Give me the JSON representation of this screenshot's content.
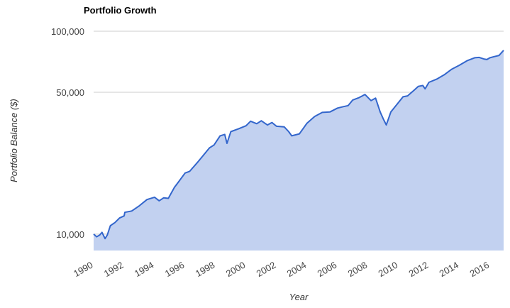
{
  "chart_data": {
    "type": "area",
    "title": "Portfolio Growth",
    "xlabel": "Year",
    "ylabel": "Portfolio Balance ($)",
    "yscale": "log",
    "ylim": [
      8300,
      100000
    ],
    "xlim": [
      1990.0,
      2016.9
    ],
    "y_ticks": [
      {
        "value": 100000,
        "label": "100,000"
      },
      {
        "value": 50000,
        "label": "50,000"
      },
      {
        "value": 10000,
        "label": "10,000"
      }
    ],
    "x_ticks": [
      {
        "value": 1990,
        "label": "1990"
      },
      {
        "value": 1992,
        "label": "1992"
      },
      {
        "value": 1994,
        "label": "1994"
      },
      {
        "value": 1996,
        "label": "1996"
      },
      {
        "value": 1998,
        "label": "1998"
      },
      {
        "value": 2000,
        "label": "2000"
      },
      {
        "value": 2002,
        "label": "2002"
      },
      {
        "value": 2004,
        "label": "2004"
      },
      {
        "value": 2006,
        "label": "2006"
      },
      {
        "value": 2008,
        "label": "2008"
      },
      {
        "value": 2010,
        "label": "2010"
      },
      {
        "value": 2012,
        "label": "2012"
      },
      {
        "value": 2014,
        "label": "2014"
      },
      {
        "value": 2016,
        "label": "2016"
      }
    ],
    "grid": true,
    "legend": "none",
    "colors": {
      "line": "#3366cc",
      "fill": "#c2d1f0"
    },
    "series": [
      {
        "x": [
          1990.0,
          1990.2,
          1990.4,
          1990.55,
          1990.75,
          1990.9,
          1991.1,
          1991.4,
          1991.7,
          1992.0,
          1992.05,
          1992.5,
          1993.0,
          1993.5,
          1994.0,
          1994.3,
          1994.6,
          1994.9,
          1995.3,
          1995.6,
          1996.0,
          1996.3,
          1996.8,
          1997.3,
          1997.6,
          1997.9,
          1998.3,
          1998.6,
          1998.75,
          1999.0,
          1999.5,
          2000.0,
          2000.3,
          2000.7,
          2001.0,
          2001.4,
          2001.7,
          2002.0,
          2002.5,
          2002.8,
          2003.0,
          2003.5,
          2004.0,
          2004.5,
          2005.0,
          2005.5,
          2006.0,
          2006.4,
          2006.7,
          2007.0,
          2007.4,
          2007.8,
          2008.2,
          2008.5,
          2008.8,
          2009.0,
          2009.2,
          2009.5,
          2010.0,
          2010.3,
          2010.6,
          2011.0,
          2011.3,
          2011.6,
          2011.75,
          2012.0,
          2012.5,
          2013.0,
          2013.5,
          2014.0,
          2014.5,
          2015.0,
          2015.3,
          2015.6,
          2015.8,
          2016.0,
          2016.3,
          2016.6,
          2016.9
        ],
        "y": [
          10000,
          9700,
          9900,
          10200,
          9500,
          9900,
          11000,
          11400,
          12000,
          12300,
          12800,
          13000,
          13800,
          14800,
          15200,
          14600,
          15100,
          15000,
          17000,
          18200,
          20000,
          20400,
          22500,
          25000,
          26600,
          27500,
          30500,
          31000,
          28000,
          32000,
          33000,
          34200,
          36000,
          35000,
          36200,
          34500,
          35500,
          34000,
          33800,
          32000,
          30500,
          31200,
          35200,
          38000,
          39800,
          40000,
          41800,
          42500,
          43000,
          45800,
          47000,
          48800,
          45500,
          46800,
          40000,
          37000,
          34500,
          40000,
          44500,
          47500,
          48000,
          51000,
          53500,
          54000,
          52000,
          56000,
          58000,
          61000,
          65000,
          68000,
          71500,
          74000,
          74300,
          73000,
          72500,
          74000,
          75000,
          76000,
          80500
        ]
      }
    ]
  }
}
